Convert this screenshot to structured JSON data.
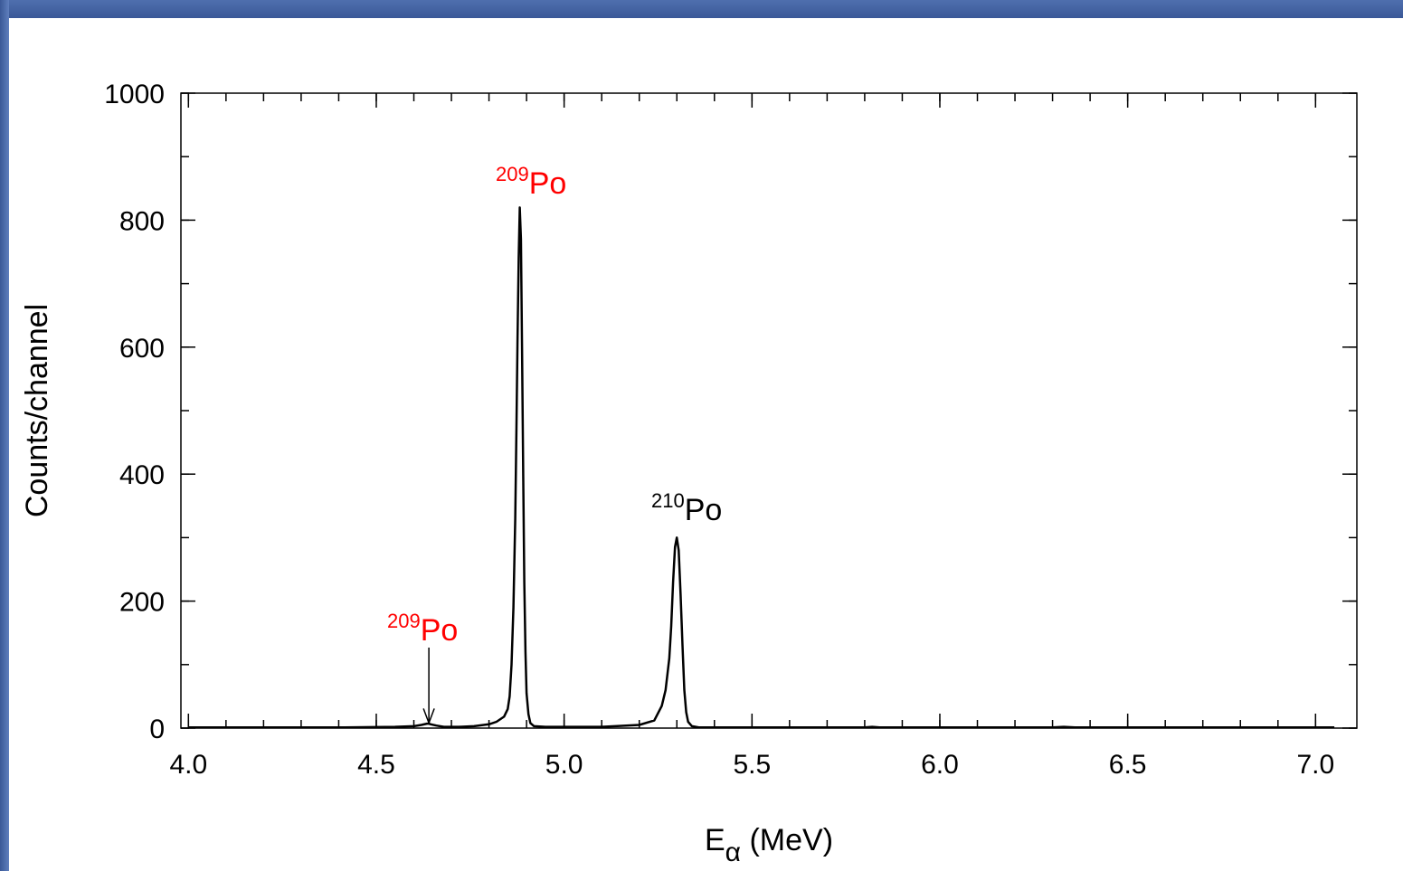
{
  "chart_data": {
    "type": "line",
    "title": "",
    "xlabel": {
      "main": "E",
      "sub": "α",
      "unit": " (MeV)"
    },
    "ylabel": "Counts/channel",
    "xlim": [
      3.98,
      7.11
    ],
    "ylim": [
      0,
      1000
    ],
    "x_ticks": [
      4.0,
      4.5,
      5.0,
      5.5,
      6.0,
      6.5,
      7.0
    ],
    "x_tick_labels": [
      "4.0",
      "4.5",
      "5.0",
      "5.5",
      "6.0",
      "6.5",
      "7.0"
    ],
    "x_minor_step": 0.1,
    "y_ticks": [
      0,
      200,
      400,
      600,
      800,
      1000
    ],
    "y_tick_labels": [
      "0",
      "200",
      "400",
      "600",
      "800",
      "1000"
    ],
    "y_minor_step": 100,
    "grid": false,
    "line_color": "#000000",
    "series": [
      {
        "x": [
          4.0,
          4.2,
          4.4,
          4.55,
          4.6,
          4.62,
          4.635,
          4.64,
          4.645,
          4.66,
          4.68,
          4.72,
          4.76,
          4.8,
          4.82,
          4.84,
          4.85,
          4.855,
          4.86,
          4.865,
          4.87,
          4.873,
          4.876,
          4.879,
          4.882,
          4.885,
          4.888,
          4.891,
          4.894,
          4.897,
          4.9,
          4.905,
          4.91,
          4.92,
          4.95,
          5.0,
          5.1,
          5.2,
          5.24,
          5.26,
          5.27,
          5.28,
          5.285,
          5.29,
          5.295,
          5.3,
          5.305,
          5.31,
          5.315,
          5.32,
          5.325,
          5.33,
          5.34,
          5.36,
          5.5,
          5.8,
          5.82,
          5.84,
          6.0,
          6.3,
          6.33,
          6.36,
          6.6,
          6.8,
          7.05
        ],
        "y": [
          1,
          1,
          1,
          2,
          3,
          5,
          7,
          7,
          6,
          4,
          2,
          2,
          3,
          6,
          10,
          18,
          30,
          50,
          100,
          190,
          330,
          470,
          610,
          740,
          820,
          770,
          600,
          400,
          230,
          120,
          55,
          22,
          8,
          3,
          2,
          2,
          2,
          5,
          12,
          35,
          60,
          110,
          160,
          230,
          285,
          300,
          280,
          210,
          130,
          60,
          25,
          10,
          3,
          1,
          1,
          1,
          2,
          1,
          1,
          1,
          2,
          1,
          1,
          1,
          1
        ]
      }
    ],
    "annotations": [
      {
        "sup": "209",
        "text": "Po",
        "color": "#ff0000"
      },
      {
        "sup": "210",
        "text": "Po",
        "color": "#000000"
      },
      {
        "sup": "209",
        "text": "Po",
        "color": "#ff0000",
        "arrow_to": [
          4.64,
          8
        ]
      }
    ]
  }
}
